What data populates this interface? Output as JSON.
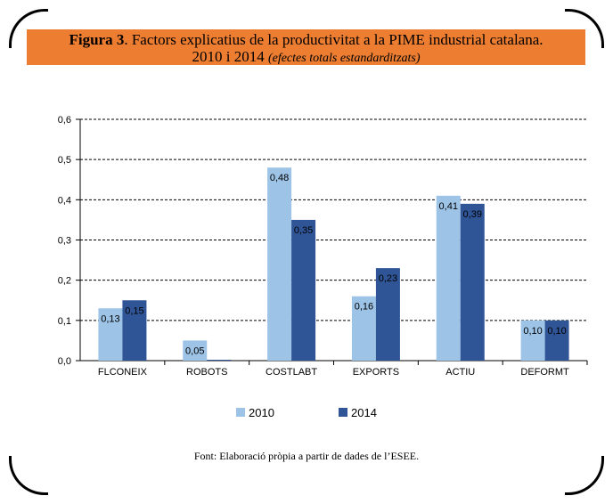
{
  "title": {
    "label": "Figura 3",
    "main": ". Factors explicatius de la productivitat a la PIME industrial catalana.",
    "years": "2010 i 2014 ",
    "note": "(efectes totals estandarditzats)"
  },
  "source": "Font: Elaboració pròpia a partir de dades de l’ESEE.",
  "colors": {
    "s2010": "#9DC3E6",
    "s2014": "#2F5597",
    "accent": "#ED7D31"
  },
  "chart_data": {
    "type": "bar",
    "categories": [
      "FLCONEIX",
      "ROBOTS",
      "COSTLABT",
      "EXPORTS",
      "ACTIU",
      "DEFORMT"
    ],
    "series": [
      {
        "name": "2010",
        "values": [
          0.13,
          0.05,
          0.48,
          0.16,
          0.41,
          0.1
        ]
      },
      {
        "name": "2014",
        "values": [
          0.15,
          0.0,
          0.35,
          0.23,
          0.39,
          0.1
        ]
      }
    ],
    "value_labels": [
      [
        "0,13",
        "0,05",
        "0,48",
        "0,16",
        "0,41",
        "0,10"
      ],
      [
        "0,15",
        "",
        "0,35",
        "0,23",
        "0,39",
        "0,10"
      ]
    ],
    "ylim": [
      0,
      0.6
    ],
    "yticks": [
      "0,0",
      "0,1",
      "0,2",
      "0,3",
      "0,4",
      "0,5",
      "0,6"
    ],
    "grid": true,
    "legend": "bottom"
  }
}
